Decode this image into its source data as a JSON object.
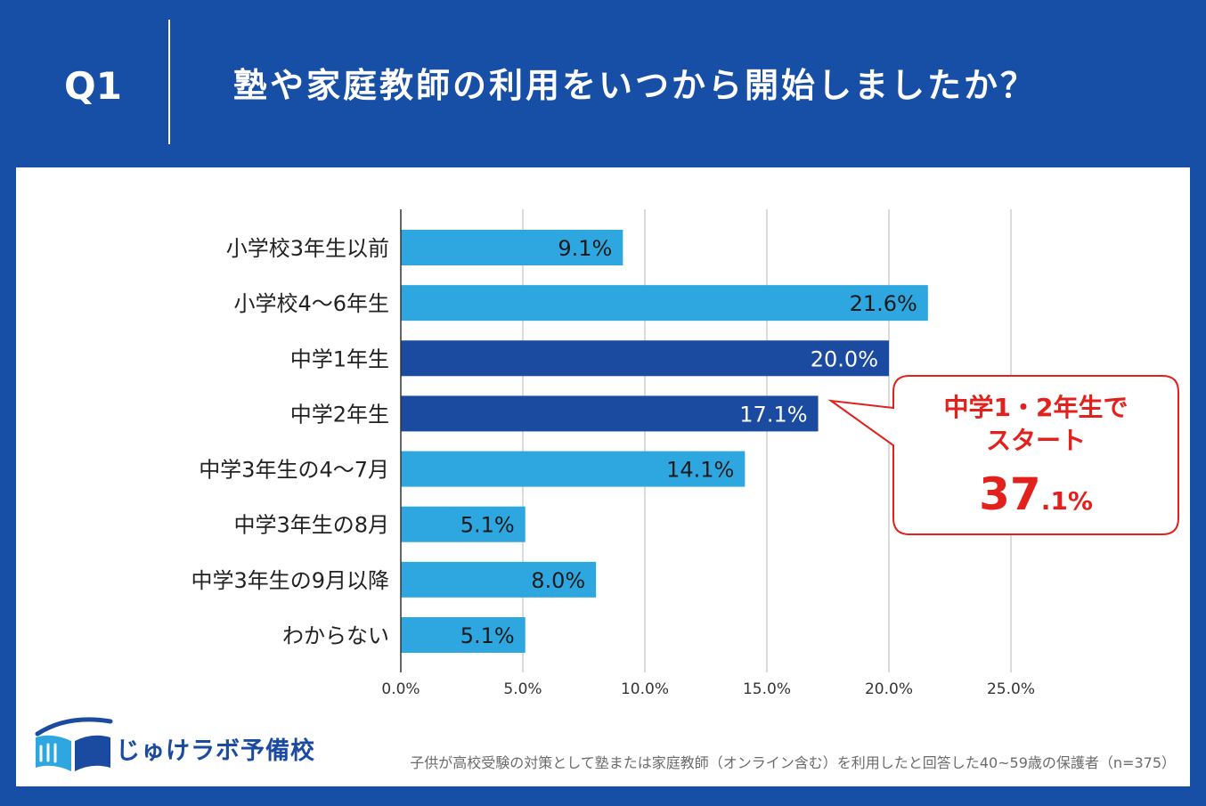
{
  "header": {
    "q_label": "Q1",
    "title": "塾や家庭教師の利用をいつから開始しましたか？"
  },
  "colors": {
    "background": "#174ea6",
    "bar": "#2ea7e0",
    "bar_highlight": "#1a4ba0",
    "callout": "#e3211c",
    "gridline": "#cfcfcf"
  },
  "chart_data": {
    "type": "bar",
    "orientation": "horizontal",
    "categories": [
      "小学校3年生以前",
      "小学校4～6年生",
      "中学1年生",
      "中学2年生",
      "中学3年生の4～7月",
      "中学3年生の8月",
      "中学3年生の9月以降",
      "わからない"
    ],
    "values": [
      9.1,
      21.6,
      20.0,
      17.1,
      14.1,
      5.1,
      8.0,
      5.1
    ],
    "data_labels": [
      "9.1%",
      "21.6%",
      "20.0%",
      "17.1%",
      "14.1%",
      "5.1%",
      "8.0%",
      "5.1%"
    ],
    "highlighted": [
      false,
      false,
      true,
      true,
      false,
      false,
      false,
      false
    ],
    "xlim": [
      0,
      25
    ],
    "xticks": [
      0,
      5,
      10,
      15,
      20,
      25
    ],
    "xtick_labels": [
      "0.0%",
      "5.0%",
      "10.0%",
      "15.0%",
      "20.0%",
      "25.0%"
    ],
    "grid": true
  },
  "callout": {
    "line1": "中学1・2年生で",
    "line2": "スタート",
    "value_int": "37",
    "value_frac": ".1%"
  },
  "logo": {
    "icon": "book-icon",
    "text": "じゅけラボ予備校"
  },
  "footnote": "子供が高校受験の対策として塾または家庭教師（オンライン含む）を利用したと回答した40~59歳の保護者（n=375）"
}
